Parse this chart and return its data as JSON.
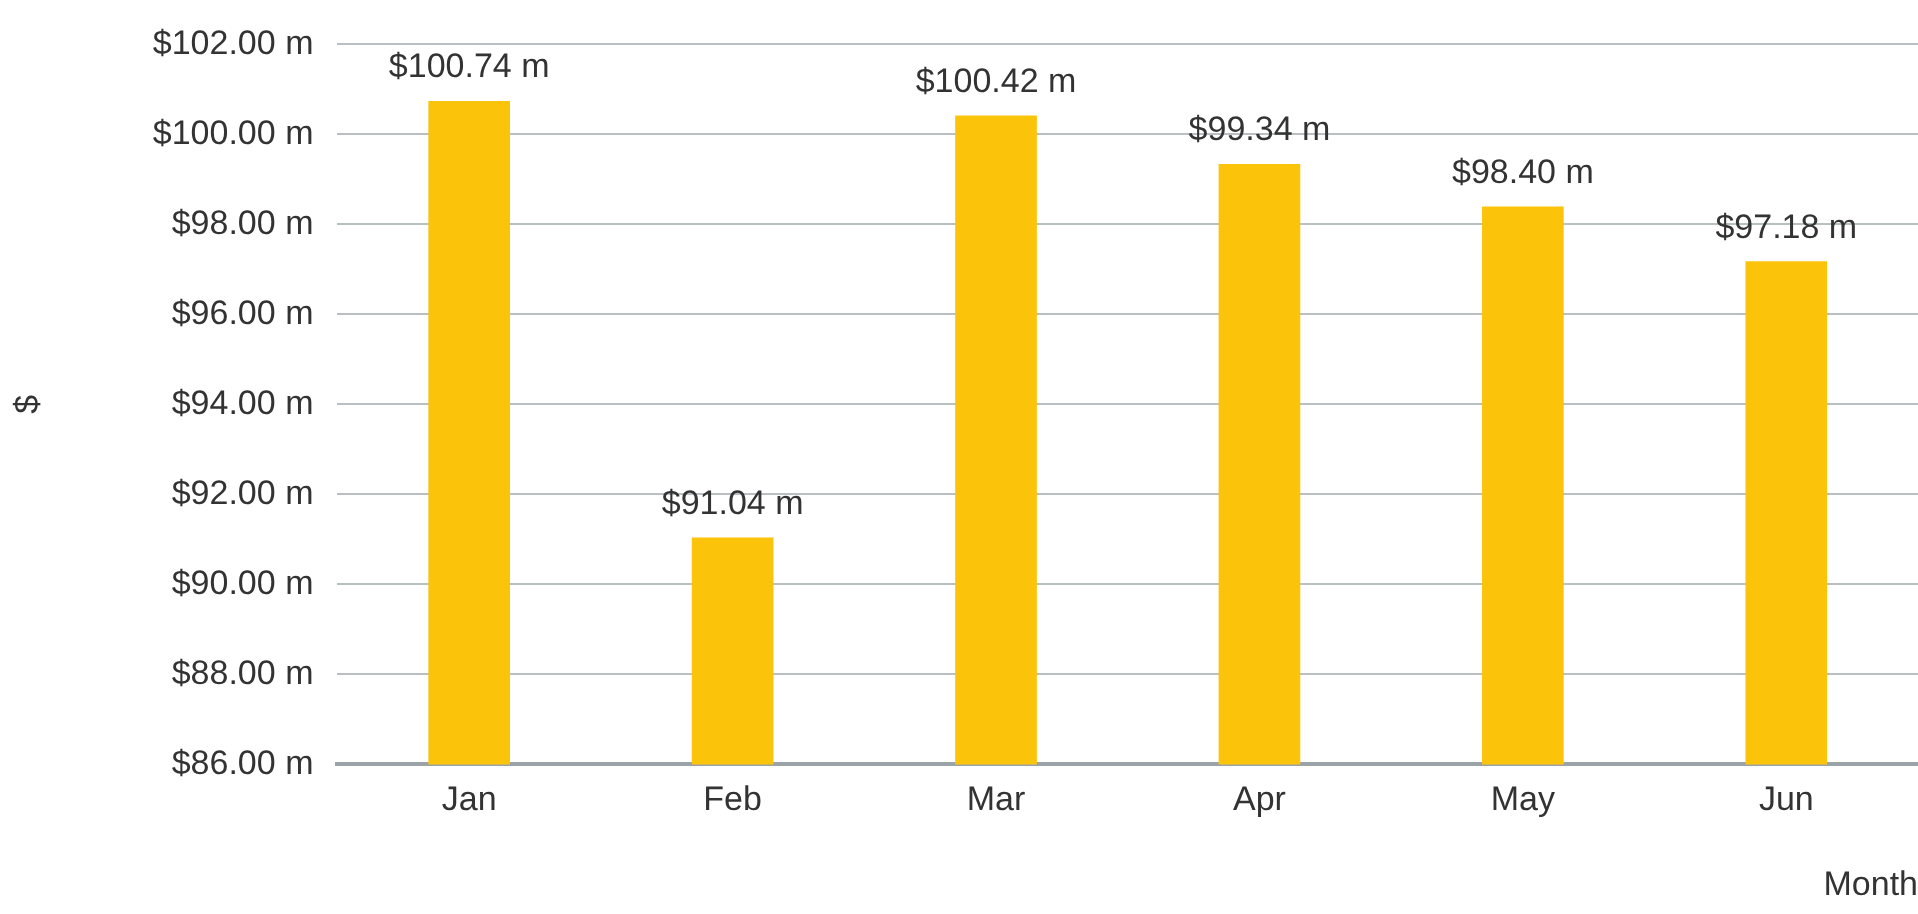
{
  "chart_data": {
    "type": "bar",
    "xlabel": "Month",
    "ylabel": "$",
    "categories": [
      "Jan",
      "Feb",
      "Mar",
      "Apr",
      "May",
      "Jun"
    ],
    "values": [
      100.74,
      91.04,
      100.42,
      99.34,
      98.4,
      97.18
    ],
    "value_labels": [
      "$100.74 m",
      "$91.04 m",
      "$100.42 m",
      "$99.34 m",
      "$98.40 m",
      "$97.18 m"
    ],
    "color": "#fcc30b",
    "ylim": [
      86,
      102
    ],
    "yticks": [
      {
        "value": 86,
        "label": "$86.00 m"
      },
      {
        "value": 88,
        "label": "$88.00 m"
      },
      {
        "value": 90,
        "label": "$90.00 m"
      },
      {
        "value": 92,
        "label": "$92.00 m"
      },
      {
        "value": 94,
        "label": "$94.00 m"
      },
      {
        "value": 96,
        "label": "$96.00 m"
      },
      {
        "value": 98,
        "label": "$98.00 m"
      },
      {
        "value": 100,
        "label": "$100.00 m"
      },
      {
        "value": 102,
        "label": "$102.00 m"
      }
    ],
    "grid": "y",
    "legend": false
  }
}
